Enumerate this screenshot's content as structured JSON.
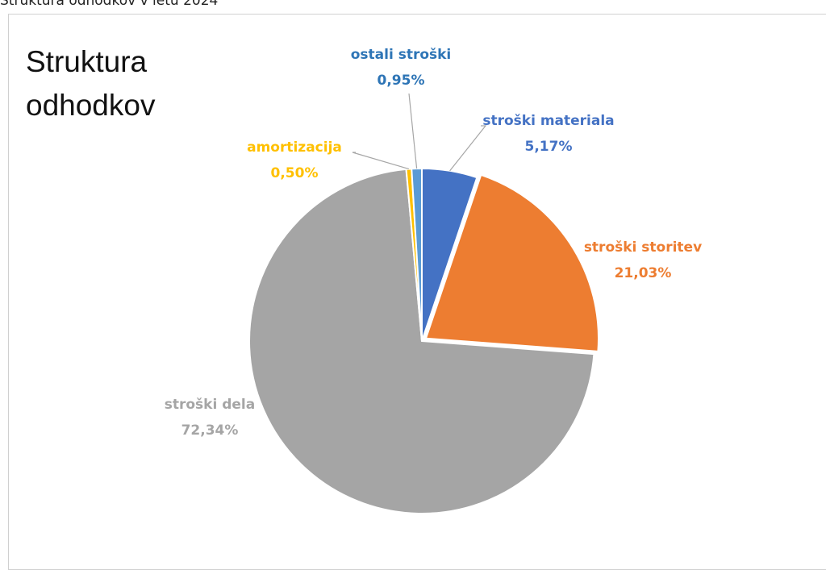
{
  "caption": "Struktura odhodkov v letu 2024",
  "chart_data": {
    "type": "pie",
    "title": "Struktura odhodkov",
    "categories": [
      "stroški materiala",
      "stroški storitev",
      "stroški dela",
      "amortizacija",
      "ostali stroški"
    ],
    "values": [
      5.17,
      21.03,
      72.34,
      0.5,
      0.95
    ],
    "value_labels": [
      "5,17%",
      "21,03%",
      "72,34%",
      "0,50%",
      "0,95%"
    ],
    "colors": [
      "#4472c4",
      "#ed7d31",
      "#a5a5a5",
      "#ffc000",
      "#5b9bd5"
    ],
    "label_colors": [
      "#4472c4",
      "#ed7d31",
      "#a5a5a5",
      "#ffc000",
      "#2e75b6"
    ]
  }
}
